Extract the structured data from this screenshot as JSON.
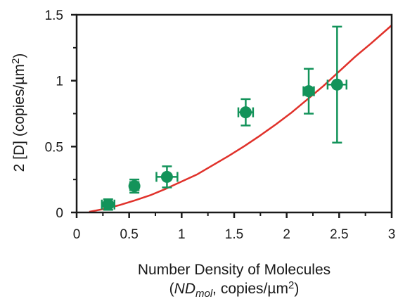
{
  "chart_data": {
    "type": "scatter",
    "xlabel_line1": "Number Density of Molecules",
    "xlabel_line2_open": "(",
    "xlabel_line2_italic": "ND",
    "xlabel_line2_sub": "mol",
    "xlabel_line2_rest": ", copies/µm",
    "xlabel_line2_sup": "2",
    "xlabel_line2_close": ")",
    "ylabel_main": "2 [D] (copies/µm",
    "ylabel_sup": "2",
    "ylabel_close": ")",
    "xlim": [
      0,
      3
    ],
    "ylim": [
      0,
      1.5
    ],
    "x_ticks": [
      0,
      0.5,
      1,
      1.5,
      2,
      2.5,
      3
    ],
    "x_tick_labels": [
      "0",
      "0.5",
      "1",
      "1.5",
      "2",
      "2.5",
      "3"
    ],
    "y_ticks": [
      0,
      0.5,
      1,
      1.5
    ],
    "y_tick_labels": [
      "0",
      "0.5",
      "1",
      "1.5"
    ],
    "grid": false,
    "series": [
      {
        "type": "scatter",
        "color": "#13935a",
        "points": [
          {
            "x": 0.3,
            "y": 0.06,
            "xerr": 0.06,
            "yerr": 0.04
          },
          {
            "x": 0.55,
            "y": 0.2,
            "xerr": 0.04,
            "yerr": 0.05
          },
          {
            "x": 0.86,
            "y": 0.27,
            "xerr": 0.1,
            "yerr": 0.08
          },
          {
            "x": 1.61,
            "y": 0.76,
            "xerr": 0.07,
            "yerr": 0.1
          },
          {
            "x": 2.21,
            "y": 0.92,
            "xerr": 0.05,
            "yerr": 0.17
          },
          {
            "x": 2.48,
            "y": 0.97,
            "xerr": 0.09,
            "yerr": 0.44
          }
        ]
      },
      {
        "type": "line",
        "color": "#e0312a",
        "x": [
          0.12,
          0.25,
          0.4,
          0.55,
          0.7,
          0.85,
          1.0,
          1.15,
          1.3,
          1.45,
          1.6,
          1.75,
          1.9,
          2.05,
          2.2,
          2.35,
          2.5,
          2.65,
          2.8,
          3.0
        ],
        "y": [
          0.005,
          0.025,
          0.054,
          0.09,
          0.13,
          0.18,
          0.235,
          0.29,
          0.36,
          0.43,
          0.505,
          0.585,
          0.67,
          0.76,
          0.86,
          0.96,
          1.07,
          1.18,
          1.28,
          1.42
        ]
      }
    ]
  }
}
